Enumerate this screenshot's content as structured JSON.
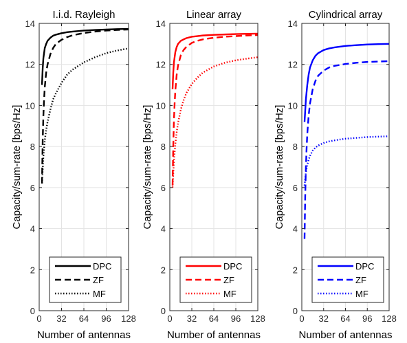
{
  "chart_data": [
    {
      "type": "line",
      "title": "I.i.d. Rayleigh",
      "xlabel": "Number of antennas",
      "ylabel": "Capacity/sum-rate [bps/Hz]",
      "xlim": [
        0,
        128
      ],
      "ylim": [
        0,
        14
      ],
      "xticks": [
        0,
        32,
        64,
        96,
        128
      ],
      "yticks": [
        0,
        2,
        4,
        6,
        8,
        10,
        12,
        14
      ],
      "grid": true,
      "legend_position": "bottom",
      "series": [
        {
          "name": "DPC",
          "color": "#000000",
          "style": "solid",
          "x": [
            4,
            5,
            6,
            8,
            10,
            12,
            16,
            20,
            24,
            32,
            40,
            48,
            64,
            80,
            96,
            112,
            128
          ],
          "y": [
            11.0,
            11.8,
            12.3,
            12.8,
            13.0,
            13.15,
            13.3,
            13.4,
            13.45,
            13.52,
            13.57,
            13.6,
            13.65,
            13.68,
            13.7,
            13.72,
            13.73
          ]
        },
        {
          "name": "ZF",
          "color": "#000000",
          "style": "dashed",
          "x": [
            4,
            5,
            6,
            7,
            8,
            10,
            12,
            16,
            20,
            24,
            32,
            40,
            48,
            64,
            80,
            96,
            112,
            128
          ],
          "y": [
            6.2,
            8.3,
            9.5,
            10.3,
            10.9,
            11.6,
            12.0,
            12.5,
            12.8,
            13.0,
            13.2,
            13.33,
            13.42,
            13.53,
            13.6,
            13.65,
            13.68,
            13.7
          ]
        },
        {
          "name": "MF",
          "color": "#000000",
          "style": "dotted",
          "x": [
            4,
            6,
            8,
            10,
            12,
            16,
            20,
            24,
            32,
            40,
            48,
            64,
            80,
            96,
            112,
            128
          ],
          "y": [
            6.2,
            7.5,
            8.3,
            8.8,
            9.2,
            9.8,
            10.3,
            10.6,
            11.1,
            11.5,
            11.75,
            12.1,
            12.35,
            12.55,
            12.68,
            12.78
          ]
        }
      ]
    },
    {
      "type": "line",
      "title": "Linear array",
      "xlabel": "Number of antennas",
      "ylabel": "Capacity/sum-rate [bps/Hz]",
      "xlim": [
        0,
        128
      ],
      "ylim": [
        0,
        14
      ],
      "xticks": [
        0,
        32,
        64,
        96,
        128
      ],
      "yticks": [
        0,
        2,
        4,
        6,
        8,
        10,
        12,
        14
      ],
      "grid": true,
      "legend_position": "bottom",
      "series": [
        {
          "name": "DPC",
          "color": "#ff0000",
          "style": "solid",
          "x": [
            4,
            5,
            6,
            8,
            10,
            12,
            16,
            20,
            24,
            32,
            40,
            48,
            64,
            80,
            96,
            112,
            128
          ],
          "y": [
            10.8,
            11.6,
            12.1,
            12.6,
            12.85,
            13.0,
            13.15,
            13.22,
            13.28,
            13.35,
            13.38,
            13.41,
            13.44,
            13.46,
            13.48,
            13.49,
            13.5
          ]
        },
        {
          "name": "ZF",
          "color": "#ff0000",
          "style": "dashed",
          "x": [
            4,
            5,
            6,
            7,
            8,
            10,
            12,
            16,
            20,
            24,
            32,
            40,
            48,
            64,
            80,
            96,
            112,
            128
          ],
          "y": [
            6.1,
            8.0,
            9.3,
            10.1,
            10.7,
            11.5,
            11.95,
            12.45,
            12.7,
            12.85,
            13.05,
            13.15,
            13.22,
            13.3,
            13.35,
            13.38,
            13.41,
            13.43
          ]
        },
        {
          "name": "MF",
          "color": "#ff0000",
          "style": "dotted",
          "x": [
            4,
            6,
            8,
            10,
            12,
            16,
            20,
            24,
            32,
            40,
            48,
            64,
            80,
            96,
            112,
            128
          ],
          "y": [
            6.0,
            7.3,
            8.1,
            8.7,
            9.15,
            9.8,
            10.25,
            10.6,
            11.05,
            11.35,
            11.6,
            11.9,
            12.08,
            12.2,
            12.28,
            12.35
          ]
        }
      ]
    },
    {
      "type": "line",
      "title": "Cylindrical array",
      "xlabel": "Number of antennas",
      "ylabel": "Capacity/sum-rate [bps/Hz]",
      "xlim": [
        0,
        128
      ],
      "ylim": [
        0,
        14
      ],
      "xticks": [
        0,
        32,
        64,
        96,
        128
      ],
      "yticks": [
        0,
        2,
        4,
        6,
        8,
        10,
        12,
        14
      ],
      "grid": true,
      "legend_position": "bottom",
      "series": [
        {
          "name": "DPC",
          "color": "#0000ff",
          "style": "solid",
          "x": [
            4,
            6,
            8,
            10,
            12,
            16,
            20,
            24,
            32,
            40,
            48,
            64,
            80,
            96,
            112,
            128
          ],
          "y": [
            9.2,
            10.3,
            11.0,
            11.5,
            11.85,
            12.2,
            12.42,
            12.55,
            12.7,
            12.78,
            12.83,
            12.9,
            12.94,
            12.97,
            12.99,
            13.0
          ]
        },
        {
          "name": "ZF",
          "color": "#0000ff",
          "style": "dashed",
          "x": [
            4,
            5,
            6,
            7,
            8,
            10,
            12,
            16,
            20,
            24,
            32,
            40,
            48,
            64,
            80,
            96,
            112,
            128
          ],
          "y": [
            3.5,
            5.6,
            7.0,
            7.9,
            8.6,
            9.5,
            10.1,
            10.8,
            11.2,
            11.45,
            11.7,
            11.85,
            11.93,
            12.02,
            12.08,
            12.12,
            12.14,
            12.16
          ]
        },
        {
          "name": "MF",
          "color": "#0000ff",
          "style": "dotted",
          "x": [
            4,
            6,
            8,
            10,
            12,
            16,
            20,
            24,
            32,
            40,
            48,
            64,
            80,
            96,
            112,
            128
          ],
          "y": [
            6.1,
            6.75,
            7.1,
            7.35,
            7.55,
            7.8,
            7.95,
            8.05,
            8.17,
            8.25,
            8.3,
            8.38,
            8.42,
            8.46,
            8.48,
            8.5
          ]
        }
      ]
    }
  ]
}
